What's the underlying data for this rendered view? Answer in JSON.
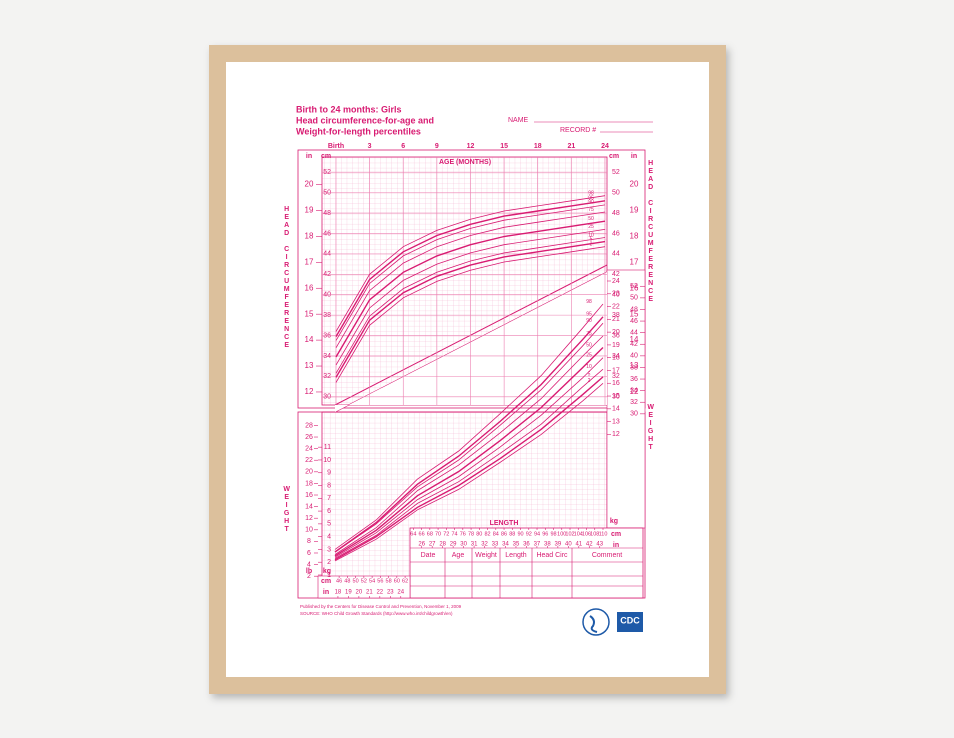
{
  "header": {
    "title_lines": [
      "Birth to 24 months: Girls",
      "Head circumference-for-age and",
      "Weight-for-length percentiles"
    ],
    "name_label": "NAME",
    "record_label": "RECORD #"
  },
  "chart_data": [
    {
      "type": "line",
      "x_label": "AGE (MONTHS)",
      "y_label": "HEAD CIRCUMFERENCE",
      "y_unit": "cm",
      "y2_unit": "in",
      "color": "#d81b72",
      "x": [
        0,
        3,
        6,
        9,
        12,
        15,
        18,
        21,
        24
      ],
      "xlim": [
        0,
        24
      ],
      "xticks": [
        {
          "value": 0,
          "label": "Birth"
        },
        3,
        6,
        9,
        12,
        15,
        18,
        21,
        24
      ],
      "ylim": [
        29,
        53
      ],
      "yticks": [
        30,
        32,
        34,
        36,
        38,
        40,
        42,
        44,
        46,
        48,
        50,
        52
      ],
      "y2lim": [
        11.42,
        20.87
      ],
      "y2ticks": [
        12,
        13,
        14,
        15,
        16,
        17,
        18,
        19,
        20
      ],
      "series": [
        {
          "name": "2",
          "values": [
            31.4,
            37.0,
            39.7,
            41.3,
            42.4,
            43.2,
            43.7,
            44.2,
            44.7
          ]
        },
        {
          "name": "5",
          "values": [
            31.9,
            37.5,
            40.2,
            41.8,
            42.9,
            43.7,
            44.2,
            44.7,
            45.2
          ]
        },
        {
          "name": "10",
          "values": [
            32.3,
            37.9,
            40.6,
            42.2,
            43.3,
            44.1,
            44.6,
            45.1,
            45.6
          ]
        },
        {
          "name": "25",
          "values": [
            33.1,
            38.7,
            41.4,
            43.0,
            44.1,
            44.9,
            45.4,
            45.9,
            46.4
          ]
        },
        {
          "name": "50",
          "values": [
            33.9,
            39.5,
            42.2,
            43.8,
            44.9,
            45.7,
            46.2,
            46.7,
            47.2
          ]
        },
        {
          "name": "75",
          "values": [
            34.8,
            40.4,
            43.1,
            44.7,
            45.8,
            46.6,
            47.1,
            47.6,
            48.1
          ]
        },
        {
          "name": "90",
          "values": [
            35.5,
            41.1,
            43.8,
            45.4,
            46.5,
            47.3,
            47.8,
            48.3,
            48.8
          ]
        },
        {
          "name": "95",
          "values": [
            35.9,
            41.5,
            44.2,
            45.8,
            46.9,
            47.7,
            48.2,
            48.7,
            49.2
          ]
        },
        {
          "name": "98",
          "values": [
            36.4,
            42.0,
            44.7,
            46.3,
            47.4,
            48.2,
            48.7,
            49.2,
            49.7
          ]
        }
      ]
    },
    {
      "type": "line",
      "x_label": "LENGTH",
      "y_label": "WEIGHT",
      "x_unit": "cm",
      "x2_unit": "in",
      "y_unit": "kg",
      "y2_unit": "lb",
      "color": "#d81b72",
      "x": [
        45,
        55,
        65,
        75,
        85,
        95,
        105,
        110
      ],
      "xlim": [
        45,
        110
      ],
      "xticks": [
        46,
        48,
        50,
        52,
        54,
        56,
        58,
        60,
        62,
        64,
        66,
        68,
        70,
        72,
        74,
        76,
        78,
        80,
        82,
        84,
        86,
        88,
        90,
        92,
        94,
        96,
        98,
        100,
        102,
        104,
        106,
        108,
        110
      ],
      "x2lim": [
        17.72,
        43.31
      ],
      "x2ticks": [
        18,
        19,
        20,
        21,
        22,
        23,
        24,
        26,
        27,
        28,
        29,
        30,
        31,
        32,
        33,
        34,
        35,
        36,
        37,
        38,
        39,
        40,
        41,
        42,
        43
      ],
      "ylim": [
        1,
        24
      ],
      "yticks": [
        1,
        2,
        3,
        4,
        5,
        6,
        7,
        8,
        9,
        10,
        11,
        12,
        13,
        14,
        15,
        16,
        17,
        18,
        19,
        20,
        21,
        22,
        23,
        24
      ],
      "y2lim": [
        2.2046,
        52.91
      ],
      "y2ticks": [
        2,
        4,
        6,
        8,
        10,
        12,
        14,
        16,
        18,
        20,
        22,
        24,
        26,
        28,
        30,
        32,
        34,
        36,
        38,
        40,
        42,
        44,
        46,
        48,
        50,
        52
      ],
      "series": [
        {
          "name": "2",
          "values": [
            2.1,
            3.8,
            6.1,
            7.7,
            9.8,
            12.0,
            14.6,
            16.0
          ]
        },
        {
          "name": "5",
          "values": [
            2.2,
            4.0,
            6.3,
            8.0,
            10.1,
            12.4,
            15.1,
            16.5
          ]
        },
        {
          "name": "10",
          "values": [
            2.3,
            4.1,
            6.6,
            8.3,
            10.5,
            12.8,
            15.7,
            17.1
          ]
        },
        {
          "name": "25",
          "values": [
            2.4,
            4.3,
            6.9,
            8.7,
            11.0,
            13.5,
            16.4,
            18.0
          ]
        },
        {
          "name": "50",
          "values": [
            2.5,
            4.5,
            7.2,
            9.1,
            11.5,
            14.1,
            17.2,
            18.8
          ]
        },
        {
          "name": "75",
          "values": [
            2.6,
            4.7,
            7.6,
            9.6,
            12.1,
            14.8,
            18.1,
            19.7
          ]
        },
        {
          "name": "90",
          "values": [
            2.8,
            5.0,
            7.9,
            10.0,
            12.7,
            15.5,
            18.9,
            20.7
          ]
        },
        {
          "name": "95",
          "values": [
            2.8,
            5.1,
            8.1,
            10.3,
            13.0,
            15.9,
            19.4,
            21.2
          ]
        },
        {
          "name": "98",
          "values": [
            3.0,
            5.3,
            8.5,
            10.7,
            13.6,
            16.6,
            20.3,
            22.2
          ]
        }
      ]
    }
  ],
  "table": {
    "headers": [
      "Date",
      "Age",
      "Weight",
      "Length",
      "Head Circ",
      "Comment"
    ]
  },
  "footer": {
    "lines": [
      "Published by the Centers for Disease Control and Prevention, November 1, 2009",
      "SOURCE: WHO Child Growth Standards (http://www.who.int/childgrowth/en)"
    ]
  },
  "logo": "CDC"
}
